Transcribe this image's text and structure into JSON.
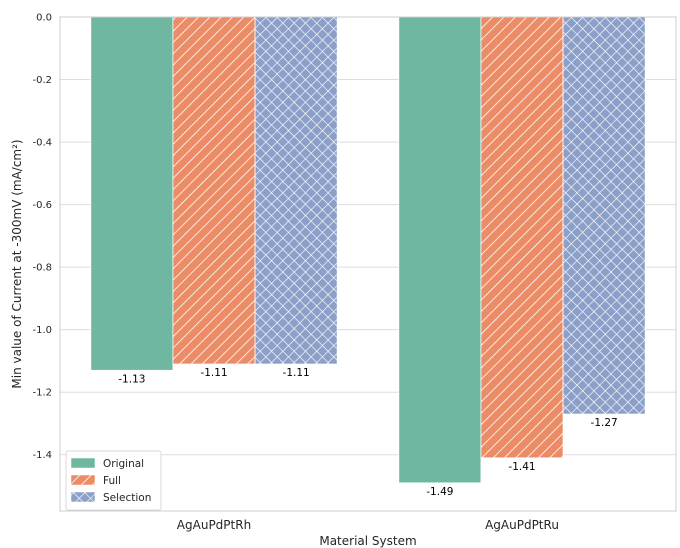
{
  "chart_data": {
    "type": "bar",
    "xlabel": "Material System",
    "ylabel": "Min value of Current at -300mV (mA/cm²)",
    "categories": [
      "AgAuPdPtRh",
      "AgAuPdPtRu"
    ],
    "series": [
      {
        "name": "Original",
        "values": [
          -1.13,
          -1.49
        ],
        "labels": [
          "-1.13",
          "-1.49"
        ],
        "color": "#6fb7a0",
        "pattern": "solid"
      },
      {
        "name": "Full",
        "values": [
          -1.11,
          -1.41
        ],
        "labels": [
          "-1.11",
          "-1.41"
        ],
        "color": "#ec8c67",
        "pattern": "diagonal-hatch"
      },
      {
        "name": "Selection",
        "values": [
          -1.11,
          -1.27
        ],
        "labels": [
          "-1.11",
          "-1.27"
        ],
        "color": "#8b9fc8",
        "pattern": "cross-hatch"
      }
    ],
    "ylim": [
      -1.58,
      0.0
    ],
    "yticks": [
      "0.0",
      "-0.2",
      "-0.4",
      "-0.6",
      "-0.8",
      "-1.0",
      "-1.2",
      "-1.4"
    ],
    "grid": true,
    "legend_position": "lower-left"
  }
}
